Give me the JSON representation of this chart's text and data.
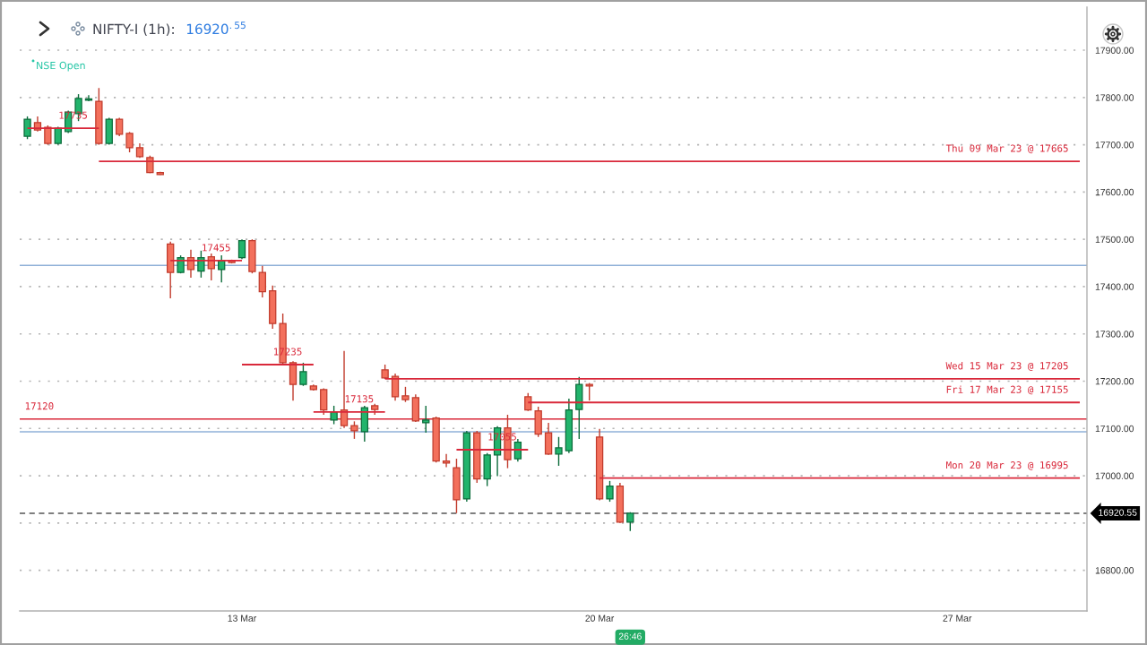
{
  "chart_data": {
    "type": "candlestick",
    "title": "NIFTY-I (1h):",
    "subtitle": "16920$^{.55}$",
    "categories": [
      null,
      null,
      null,
      null,
      null,
      null,
      null,
      null,
      null,
      null,
      null,
      null,
      null,
      null,
      null,
      null,
      null,
      null,
      null,
      null,
      null,
      "13 Mar",
      null,
      null,
      null,
      null,
      null,
      null,
      null,
      null,
      null,
      null,
      null,
      null,
      null,
      null,
      null,
      null,
      null,
      null,
      null,
      null,
      null,
      null,
      null,
      null,
      null,
      null,
      null,
      null,
      null,
      null,
      null,
      null,
      null,
      null,
      "20 Mar",
      null,
      null,
      null,
      null,
      null,
      null,
      null,
      null,
      null,
      null,
      null,
      null,
      null,
      null,
      null,
      null,
      null,
      null,
      null,
      null,
      null,
      null,
      null,
      null,
      null,
      null,
      null,
      null,
      null,
      null,
      null,
      null,
      null,
      null,
      "27 Mar",
      null,
      null,
      null,
      null,
      null,
      null,
      null,
      null,
      null,
      null,
      null,
      null
    ],
    "ohlc": [
      [
        17718,
        17760,
        17712,
        17754
      ],
      [
        17747,
        17760,
        17728,
        17731
      ],
      [
        17737,
        17741,
        17700,
        17703
      ],
      [
        17703,
        17738,
        17700,
        17735
      ],
      [
        17728,
        17772,
        17725,
        17769
      ],
      [
        17766,
        17807,
        17750,
        17798
      ],
      [
        17794,
        17805,
        17792,
        17797
      ],
      [
        17792,
        17820,
        17700,
        17703
      ],
      [
        17703,
        17757,
        17700,
        17754
      ],
      [
        17754,
        17757,
        17718,
        17722
      ],
      [
        17724,
        17727,
        17684,
        17694
      ],
      [
        17694,
        17703,
        17672,
        17675
      ],
      [
        17673,
        17677,
        17640,
        17641
      ],
      [
        17641,
        17643,
        17636,
        17637
      ],
      [
        17490,
        17495,
        17375,
        17430
      ],
      [
        17430,
        17466,
        17428,
        17461
      ],
      [
        17461,
        17478,
        17419,
        17436
      ],
      [
        17433,
        17476,
        17419,
        17461
      ],
      [
        17463,
        17470,
        17413,
        17438
      ],
      [
        17436,
        17466,
        17409,
        17455
      ],
      [
        17455,
        17457,
        17449,
        17451
      ],
      [
        17461,
        17500,
        17458,
        17497
      ],
      [
        17497,
        17500,
        17428,
        17432
      ],
      [
        17430,
        17444,
        17377,
        17389
      ],
      [
        17391,
        17402,
        17311,
        17322
      ],
      [
        17322,
        17343,
        17235,
        17239
      ],
      [
        17239,
        17242,
        17159,
        17193
      ],
      [
        17193,
        17239,
        17190,
        17220
      ],
      [
        17190,
        17193,
        17180,
        17182
      ],
      [
        17182,
        17185,
        17129,
        17139
      ],
      [
        17118,
        17148,
        17109,
        17135
      ],
      [
        17139,
        17264,
        17101,
        17106
      ],
      [
        17106,
        17115,
        17078,
        17095
      ],
      [
        17093,
        17148,
        17072,
        17144
      ],
      [
        17148,
        17152,
        17129,
        17140
      ],
      [
        17224,
        17235,
        17205,
        17207
      ],
      [
        17210,
        17216,
        17159,
        17167
      ],
      [
        17169,
        17188,
        17156,
        17161
      ],
      [
        17165,
        17172,
        17114,
        17116
      ],
      [
        17112,
        17148,
        17091,
        17118
      ],
      [
        17122,
        17125,
        17028,
        17031
      ],
      [
        17031,
        17046,
        17018,
        17027
      ],
      [
        17017,
        17036,
        16921,
        16949
      ],
      [
        16951,
        17095,
        16945,
        17091
      ],
      [
        17091,
        17095,
        16985,
        16993
      ],
      [
        16993,
        17048,
        16978,
        17044
      ],
      [
        17044,
        17105,
        16999,
        17101
      ],
      [
        17101,
        17129,
        17016,
        17034
      ],
      [
        17036,
        17078,
        17030,
        17071
      ],
      [
        17167,
        17175,
        17137,
        17139
      ],
      [
        17137,
        17146,
        17082,
        17088
      ],
      [
        17091,
        17112,
        17044,
        17046
      ],
      [
        17046,
        17082,
        17021,
        17059
      ],
      [
        17053,
        17163,
        17048,
        17139
      ],
      [
        17140,
        17209,
        17078,
        17193
      ],
      [
        17193,
        17196,
        17159,
        17190
      ],
      [
        17082,
        17099,
        16948,
        16951
      ],
      [
        16951,
        16989,
        16945,
        16978
      ],
      [
        16978,
        16985,
        16900,
        16902
      ],
      [
        16902,
        16923,
        16883,
        16920.55
      ],
      null,
      null,
      null,
      null,
      null,
      null,
      null,
      null,
      null,
      null,
      null,
      null,
      null,
      null,
      null,
      null,
      null,
      null,
      null,
      null,
      null,
      null,
      null,
      null,
      null,
      null,
      null,
      null,
      null,
      null,
      null,
      null,
      null,
      null,
      null,
      null,
      null,
      null,
      null,
      null,
      null,
      null,
      null,
      null
    ],
    "ylim": [
      16714,
      17991
    ],
    "yticks": [
      {
        "value": 16800,
        "label": "16800.00"
      },
      {
        "value": 16900,
        "label": null
      },
      {
        "value": 17000,
        "label": "17000.00"
      },
      {
        "value": 17100,
        "label": "17100.00"
      },
      {
        "value": 17200,
        "label": "17200.00"
      },
      {
        "value": 17300,
        "label": "17300.00"
      },
      {
        "value": 17400,
        "label": "17400.00"
      },
      {
        "value": 17500,
        "label": "17500.00"
      },
      {
        "value": 17600,
        "label": "17600.00"
      },
      {
        "value": 17700,
        "label": "17700.00"
      },
      {
        "value": 17800,
        "label": "17800.00"
      },
      {
        "value": 17900,
        "label": "17900.00"
      }
    ],
    "grid": "y",
    "series": [
      {
        "type": "line",
        "name": "17735",
        "color": "#d9283a",
        "values": [
          17735,
          17735,
          17735,
          17735,
          17735,
          17735,
          17735,
          17735,
          null,
          null,
          null,
          null,
          null,
          null,
          null,
          null,
          null,
          null,
          null,
          null,
          null,
          null,
          null,
          null,
          null,
          null,
          null,
          null,
          null,
          null,
          null,
          null,
          null,
          null,
          null,
          null,
          null,
          null,
          null,
          null,
          null,
          null,
          null,
          null,
          null,
          null,
          null,
          null,
          null,
          null,
          null,
          null,
          null,
          null,
          null,
          null,
          null,
          null,
          null,
          null,
          null,
          null,
          null,
          null,
          null,
          null,
          null,
          null,
          null,
          null,
          null,
          null,
          null,
          null,
          null,
          null,
          null,
          null,
          null,
          null,
          null,
          null,
          null,
          null,
          null,
          null,
          null,
          null,
          null,
          null,
          null,
          null,
          null,
          null,
          null,
          null,
          null,
          null,
          null,
          null,
          null,
          null,
          null,
          null
        ]
      },
      {
        "type": "line",
        "name": "Thu 09 Mar 23 @ 17665",
        "color": "#d9283a",
        "values": [
          null,
          null,
          null,
          null,
          null,
          null,
          null,
          17665,
          17665,
          17665,
          17665,
          17665,
          17665,
          17665,
          17665,
          17665,
          17665,
          17665,
          17665,
          17665,
          17665,
          17665,
          17665,
          17665,
          17665,
          17665,
          17665,
          17665,
          17665,
          17665,
          17665,
          17665,
          17665,
          17665,
          17665,
          17665,
          17665,
          17665,
          17665,
          17665,
          17665,
          17665,
          17665,
          17665,
          17665,
          17665,
          17665,
          17665,
          17665,
          17665,
          17665,
          17665,
          17665,
          17665,
          17665,
          17665,
          17665,
          17665,
          17665,
          17665,
          17665,
          17665,
          17665,
          17665,
          17665,
          17665,
          17665,
          17665,
          17665,
          17665,
          17665,
          17665,
          17665,
          17665,
          17665,
          17665,
          17665,
          17665,
          17665,
          17665,
          17665,
          17665,
          17665,
          17665,
          17665,
          17665,
          17665,
          17665,
          17665,
          17665,
          17665,
          17665,
          17665,
          17665,
          17665,
          17665,
          17665,
          17665,
          17665,
          17665,
          17665,
          17665,
          17665,
          17665
        ]
      },
      {
        "type": "line",
        "name": "17455",
        "color": "#d9283a",
        "values": [
          null,
          null,
          null,
          null,
          null,
          null,
          null,
          null,
          null,
          null,
          null,
          null,
          null,
          null,
          17455,
          17455,
          17455,
          17455,
          17455,
          17455,
          17455,
          17455,
          null,
          null,
          null,
          null,
          null,
          null,
          null,
          null,
          null,
          null,
          null,
          null,
          null,
          null,
          null,
          null,
          null,
          null,
          null,
          null,
          null,
          null,
          null,
          null,
          null,
          null,
          null,
          null,
          null,
          null,
          null,
          null,
          null,
          null,
          null,
          null,
          null,
          null,
          null,
          null,
          null,
          null,
          null,
          null,
          null,
          null,
          null,
          null,
          null,
          null,
          null,
          null,
          null,
          null,
          null,
          null,
          null,
          null,
          null,
          null,
          null,
          null,
          null,
          null,
          null,
          null,
          null,
          null,
          null,
          null,
          null,
          null,
          null,
          null,
          null,
          null,
          null,
          null,
          null,
          null,
          null,
          null
        ]
      },
      {
        "type": "line",
        "name": "17235",
        "color": "#d9283a",
        "values": [
          null,
          null,
          null,
          null,
          null,
          null,
          null,
          null,
          null,
          null,
          null,
          null,
          null,
          null,
          null,
          null,
          null,
          null,
          null,
          null,
          null,
          17235,
          17235,
          17235,
          17235,
          17235,
          17235,
          17235,
          17235,
          null,
          null,
          null,
          null,
          null,
          null,
          null,
          null,
          null,
          null,
          null,
          null,
          null,
          null,
          null,
          null,
          null,
          null,
          null,
          null,
          null,
          null,
          null,
          null,
          null,
          null,
          null,
          null,
          null,
          null,
          null,
          null,
          null,
          null,
          null,
          null,
          null,
          null,
          null,
          null,
          null,
          null,
          null,
          null,
          null,
          null,
          null,
          null,
          null,
          null,
          null,
          null,
          null,
          null,
          null,
          null,
          null,
          null,
          null,
          null,
          null,
          null,
          null,
          null,
          null,
          null,
          null,
          null,
          null,
          null,
          null,
          null,
          null,
          null,
          null
        ]
      },
      {
        "type": "line",
        "name": "17135",
        "color": "#d9283a",
        "values": [
          null,
          null,
          null,
          null,
          null,
          null,
          null,
          null,
          null,
          null,
          null,
          null,
          null,
          null,
          null,
          null,
          null,
          null,
          null,
          null,
          null,
          null,
          null,
          null,
          null,
          null,
          null,
          null,
          17135,
          17135,
          17135,
          17135,
          17135,
          17135,
          17135,
          17135,
          null,
          null,
          null,
          null,
          null,
          null,
          null,
          null,
          null,
          null,
          null,
          null,
          null,
          null,
          null,
          null,
          null,
          null,
          null,
          null,
          null,
          null,
          null,
          null,
          null,
          null,
          null,
          null,
          null,
          null,
          null,
          null,
          null,
          null,
          null,
          null,
          null,
          null,
          null,
          null,
          null,
          null,
          null,
          null,
          null,
          null,
          null,
          null,
          null,
          null,
          null,
          null,
          null,
          null,
          null,
          null,
          null,
          null,
          null,
          null,
          null,
          null,
          null,
          null,
          null,
          null,
          null,
          null
        ]
      },
      {
        "type": "line",
        "name": "Wed 15 Mar 23 @ 17205",
        "color": "#d9283a",
        "values": [
          null,
          null,
          null,
          null,
          null,
          null,
          null,
          null,
          null,
          null,
          null,
          null,
          null,
          null,
          null,
          null,
          null,
          null,
          null,
          null,
          null,
          null,
          null,
          null,
          null,
          null,
          null,
          null,
          null,
          null,
          null,
          null,
          null,
          null,
          null,
          17205,
          17205,
          17205,
          17205,
          17205,
          17205,
          17205,
          17205,
          17205,
          17205,
          17205,
          17205,
          17205,
          17205,
          17205,
          17205,
          17205,
          17205,
          17205,
          17205,
          17205,
          17205,
          17205,
          17205,
          17205,
          17205,
          17205,
          17205,
          17205,
          17205,
          17205,
          17205,
          17205,
          17205,
          17205,
          17205,
          17205,
          17205,
          17205,
          17205,
          17205,
          17205,
          17205,
          17205,
          17205,
          17205,
          17205,
          17205,
          17205,
          17205,
          17205,
          17205,
          17205,
          17205,
          17205,
          17205,
          17205,
          17205,
          17205,
          17205,
          17205,
          17205,
          17205,
          17205,
          17205,
          17205,
          17205,
          17205,
          17205
        ]
      },
      {
        "type": "line",
        "name": "17055",
        "color": "#d9283a",
        "values": [
          null,
          null,
          null,
          null,
          null,
          null,
          null,
          null,
          null,
          null,
          null,
          null,
          null,
          null,
          null,
          null,
          null,
          null,
          null,
          null,
          null,
          null,
          null,
          null,
          null,
          null,
          null,
          null,
          null,
          null,
          null,
          null,
          null,
          null,
          null,
          null,
          null,
          null,
          null,
          null,
          null,
          null,
          17055,
          17055,
          17055,
          17055,
          17055,
          17055,
          17055,
          17055,
          null,
          null,
          null,
          null,
          null,
          null,
          null,
          null,
          null,
          null,
          null,
          null,
          null,
          null,
          null,
          null,
          null,
          null,
          null,
          null,
          null,
          null,
          null,
          null,
          null,
          null,
          null,
          null,
          null,
          null,
          null,
          null,
          null,
          null,
          null,
          null,
          null,
          null,
          null,
          null,
          null,
          null,
          null,
          null,
          null,
          null,
          null,
          null,
          null,
          null,
          null,
          null,
          null,
          null
        ]
      },
      {
        "type": "line",
        "name": "Fri 17 Mar 23 @ 17155",
        "color": "#d9283a",
        "values": [
          null,
          null,
          null,
          null,
          null,
          null,
          null,
          null,
          null,
          null,
          null,
          null,
          null,
          null,
          null,
          null,
          null,
          null,
          null,
          null,
          null,
          null,
          null,
          null,
          null,
          null,
          null,
          null,
          null,
          null,
          null,
          null,
          null,
          null,
          null,
          null,
          null,
          null,
          null,
          null,
          null,
          null,
          null,
          null,
          null,
          null,
          null,
          null,
          null,
          17155,
          17155,
          17155,
          17155,
          17155,
          17155,
          17155,
          17155,
          17155,
          17155,
          17155,
          17155,
          17155,
          17155,
          17155,
          17155,
          17155,
          17155,
          17155,
          17155,
          17155,
          17155,
          17155,
          17155,
          17155,
          17155,
          17155,
          17155,
          17155,
          17155,
          17155,
          17155,
          17155,
          17155,
          17155,
          17155,
          17155,
          17155,
          17155,
          17155,
          17155,
          17155,
          17155,
          17155,
          17155,
          17155,
          17155,
          17155,
          17155,
          17155,
          17155,
          17155,
          17155,
          17155,
          17155
        ]
      },
      {
        "type": "line",
        "name": "Mon 20 Mar 23 @ 16995",
        "color": "#d9283a",
        "values": [
          null,
          null,
          null,
          null,
          null,
          null,
          null,
          null,
          null,
          null,
          null,
          null,
          null,
          null,
          null,
          null,
          null,
          null,
          null,
          null,
          null,
          null,
          null,
          null,
          null,
          null,
          null,
          null,
          null,
          null,
          null,
          null,
          null,
          null,
          null,
          null,
          null,
          null,
          null,
          null,
          null,
          null,
          null,
          null,
          null,
          null,
          null,
          null,
          null,
          null,
          null,
          null,
          null,
          null,
          null,
          null,
          16995,
          16995,
          16995,
          16995,
          16995,
          16995,
          16995,
          16995,
          16995,
          16995,
          16995,
          16995,
          16995,
          16995,
          16995,
          16995,
          16995,
          16995,
          16995,
          16995,
          16995,
          16995,
          16995,
          16995,
          16995,
          16995,
          16995,
          16995,
          16995,
          16995,
          16995,
          16995,
          16995,
          16995,
          16995,
          16995,
          16995,
          16995,
          16995,
          16995,
          16995,
          16995,
          16995,
          16995,
          16995,
          16995,
          16995,
          16995
        ]
      }
    ],
    "ref_lines": [
      {
        "axis": "y",
        "value": 17445,
        "color": "#8fb0d8"
      },
      {
        "axis": "y",
        "value": 17093,
        "color": "#8fb0d8"
      },
      {
        "axis": "y",
        "value": 17120,
        "label": "17120",
        "color": "#d9283a"
      },
      {
        "axis": "y",
        "value": 16920.55,
        "label": "16920.55",
        "color": "#555555",
        "line_style": "dashed"
      }
    ],
    "annotations": [
      "NSE Open",
      "26:46"
    ]
  }
}
